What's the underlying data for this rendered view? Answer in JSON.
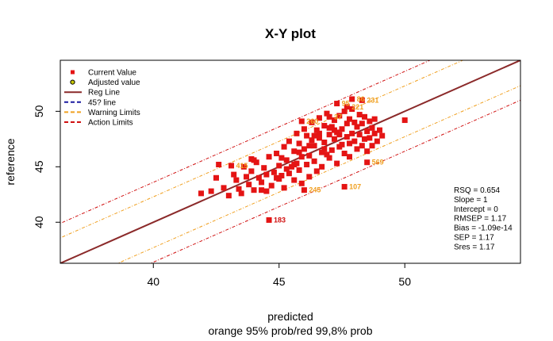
{
  "chart_data": {
    "type": "scatter",
    "title": "X-Y plot",
    "xlabel": "predicted",
    "subtitle": "orange 95% prob/red 99,8% prob",
    "ylabel": "reference",
    "xlim": [
      36.3,
      54.6
    ],
    "ylim": [
      36.3,
      54.6
    ],
    "xticks": [
      40,
      45,
      50
    ],
    "yticks": [
      40,
      45,
      50
    ],
    "grid": false,
    "legend_position": "top-left",
    "legend": [
      {
        "label": "Current Value",
        "kind": "square",
        "color": "#e41414"
      },
      {
        "label": "Adjusted value",
        "kind": "circle",
        "color": "#c8c800"
      },
      {
        "label": "Reg Line",
        "kind": "solid",
        "color": "#8b2a2a"
      },
      {
        "label": "45? line",
        "kind": "dashed",
        "color": "#1a1aa0"
      },
      {
        "label": "Warning Limits",
        "kind": "dashed",
        "color": "#f0a020"
      },
      {
        "label": "Action Limits",
        "kind": "dashed",
        "color": "#d01010"
      }
    ],
    "stats": [
      "RSQ = 0.654",
      "Slope = 1",
      "Intercept = 0",
      "RMSEP = 1.17",
      "Bias = -1.09e-14",
      "SEP = 1.17",
      "Sres = 1.17"
    ],
    "regression": {
      "slope": 1,
      "intercept": 0
    },
    "warning_offset": 2.29,
    "action_offset": 3.6,
    "colors": {
      "point": "#e41414",
      "reg_line": "#8b2a2a",
      "warning": "#f0a020",
      "action": "#d01010",
      "warning_label": "#f0a020",
      "action_label": "#d01010"
    },
    "outlier_labels": [
      {
        "x": 44.6,
        "y": 40.2,
        "label": "183",
        "color": "#d01010"
      },
      {
        "x": 43.1,
        "y": 45.1,
        "label": "415",
        "color": "#f0a020"
      },
      {
        "x": 47.6,
        "y": 43.2,
        "label": "107",
        "color": "#f0a020"
      },
      {
        "x": 46.0,
        "y": 42.9,
        "label": "245",
        "color": "#f0a020"
      },
      {
        "x": 48.5,
        "y": 45.4,
        "label": "569",
        "color": "#f0a020"
      },
      {
        "x": 45.9,
        "y": 49.1,
        "label": "260",
        "color": "#f0a020"
      },
      {
        "x": 47.0,
        "y": 49.5,
        "label": "37",
        "color": "#f0a020"
      },
      {
        "x": 47.7,
        "y": 50.4,
        "label": "221",
        "color": "#f0a020"
      },
      {
        "x": 47.3,
        "y": 50.7,
        "label": "95",
        "color": "#f0a020"
      },
      {
        "x": 48.3,
        "y": 51.0,
        "label": "231",
        "color": "#f0a020"
      },
      {
        "x": 47.9,
        "y": 51.1,
        "label": "86",
        "color": "#f0a020"
      }
    ],
    "points": [
      [
        44.6,
        40.2
      ],
      [
        43.1,
        45.1
      ],
      [
        47.6,
        43.2
      ],
      [
        46.0,
        42.9
      ],
      [
        48.5,
        45.4
      ],
      [
        45.9,
        49.1
      ],
      [
        47.0,
        49.5
      ],
      [
        47.7,
        50.4
      ],
      [
        47.3,
        50.7
      ],
      [
        48.3,
        51.0
      ],
      [
        47.9,
        51.1
      ],
      [
        41.9,
        42.6
      ],
      [
        42.3,
        42.8
      ],
      [
        42.5,
        44.0
      ],
      [
        42.8,
        43.1
      ],
      [
        42.6,
        45.2
      ],
      [
        43.0,
        42.4
      ],
      [
        43.2,
        44.3
      ],
      [
        43.4,
        43.0
      ],
      [
        43.5,
        42.6
      ],
      [
        43.6,
        45.0
      ],
      [
        43.7,
        44.1
      ],
      [
        43.8,
        43.4
      ],
      [
        43.9,
        44.6
      ],
      [
        44.0,
        42.9
      ],
      [
        44.1,
        45.4
      ],
      [
        44.2,
        44.0
      ],
      [
        44.3,
        43.6
      ],
      [
        44.4,
        44.9
      ],
      [
        44.5,
        42.8
      ],
      [
        44.6,
        45.9
      ],
      [
        44.7,
        43.3
      ],
      [
        44.8,
        44.5
      ],
      [
        44.9,
        46.2
      ],
      [
        45.0,
        43.9
      ],
      [
        45.0,
        45.1
      ],
      [
        45.1,
        44.2
      ],
      [
        45.2,
        46.8
      ],
      [
        45.2,
        43.1
      ],
      [
        45.3,
        45.6
      ],
      [
        45.4,
        44.4
      ],
      [
        45.4,
        47.3
      ],
      [
        45.5,
        45.0
      ],
      [
        45.6,
        43.8
      ],
      [
        45.6,
        46.4
      ],
      [
        45.7,
        45.3
      ],
      [
        45.7,
        48.0
      ],
      [
        45.8,
        44.7
      ],
      [
        45.8,
        47.1
      ],
      [
        45.9,
        45.9
      ],
      [
        45.9,
        43.5
      ],
      [
        46.0,
        46.6
      ],
      [
        46.0,
        48.4
      ],
      [
        46.1,
        45.2
      ],
      [
        46.1,
        47.8
      ],
      [
        46.2,
        44.1
      ],
      [
        46.2,
        46.0
      ],
      [
        46.3,
        47.4
      ],
      [
        46.3,
        49.0
      ],
      [
        46.4,
        45.5
      ],
      [
        46.4,
        46.9
      ],
      [
        46.5,
        48.3
      ],
      [
        46.5,
        44.6
      ],
      [
        46.6,
        47.6
      ],
      [
        46.6,
        49.4
      ],
      [
        46.7,
        46.3
      ],
      [
        46.7,
        45.0
      ],
      [
        46.8,
        48.7
      ],
      [
        46.8,
        47.2
      ],
      [
        46.9,
        46.1
      ],
      [
        46.9,
        49.8
      ],
      [
        47.0,
        47.9
      ],
      [
        47.0,
        45.8
      ],
      [
        47.1,
        48.6
      ],
      [
        47.1,
        46.5
      ],
      [
        47.2,
        49.2
      ],
      [
        47.2,
        47.5
      ],
      [
        47.3,
        48.1
      ],
      [
        47.3,
        45.3
      ],
      [
        47.4,
        49.6
      ],
      [
        47.4,
        46.8
      ],
      [
        47.5,
        48.4
      ],
      [
        47.5,
        47.0
      ],
      [
        47.6,
        50.0
      ],
      [
        47.6,
        46.2
      ],
      [
        47.7,
        48.9
      ],
      [
        47.7,
        47.7
      ],
      [
        47.8,
        49.3
      ],
      [
        47.8,
        45.9
      ],
      [
        47.9,
        48.0
      ],
      [
        47.9,
        50.2
      ],
      [
        48.0,
        47.3
      ],
      [
        48.0,
        49.0
      ],
      [
        48.1,
        46.6
      ],
      [
        48.1,
        48.6
      ],
      [
        48.2,
        49.7
      ],
      [
        48.2,
        47.9
      ],
      [
        48.3,
        46.9
      ],
      [
        48.3,
        48.9
      ],
      [
        48.4,
        47.5
      ],
      [
        48.4,
        49.5
      ],
      [
        48.5,
        48.2
      ],
      [
        48.5,
        46.4
      ],
      [
        48.6,
        49.1
      ],
      [
        48.6,
        47.6
      ],
      [
        48.7,
        48.5
      ],
      [
        48.7,
        46.9
      ],
      [
        48.8,
        48.0
      ],
      [
        48.8,
        49.3
      ],
      [
        48.9,
        47.3
      ],
      [
        49.0,
        48.3
      ],
      [
        49.1,
        47.8
      ],
      [
        50.0,
        49.2
      ],
      [
        44.0,
        45.6
      ],
      [
        43.3,
        43.8
      ],
      [
        44.5,
        44.3
      ],
      [
        45.1,
        45.8
      ],
      [
        45.3,
        44.8
      ],
      [
        45.6,
        45.2
      ],
      [
        46.2,
        46.9
      ],
      [
        46.8,
        46.6
      ],
      [
        47.4,
        47.9
      ],
      [
        47.0,
        48.5
      ],
      [
        46.4,
        47.8
      ],
      [
        45.8,
        46.3
      ],
      [
        44.9,
        44.0
      ],
      [
        44.3,
        42.9
      ],
      [
        43.9,
        45.7
      ],
      [
        46.6,
        48.0
      ],
      [
        47.2,
        48.3
      ],
      [
        47.8,
        47.1
      ]
    ]
  }
}
